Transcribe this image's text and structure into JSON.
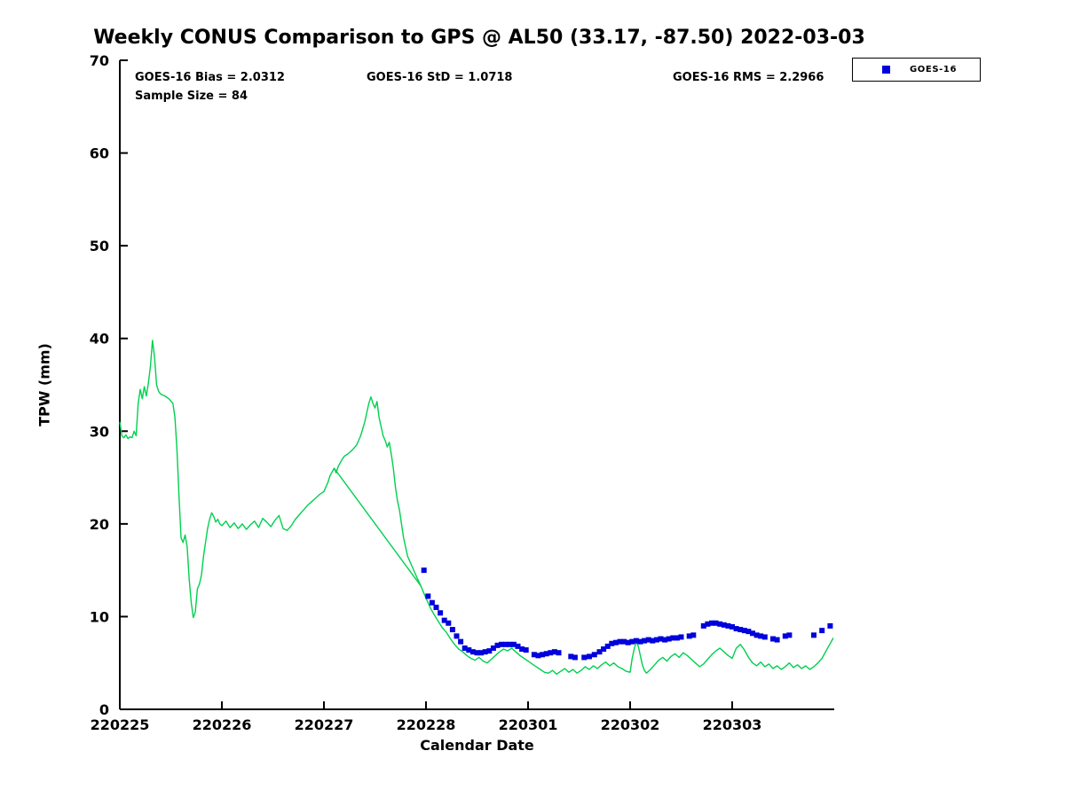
{
  "title": "Weekly CONUS Comparison to GPS @ AL50 (33.17, -87.50) 2022-03-03",
  "stats": {
    "bias": "GOES-16 Bias = 2.0312",
    "std": "GOES-16 StD = 1.0718",
    "rms": "GOES-16 RMS = 2.2966",
    "sample_size": "Sample Size = 84"
  },
  "legend": {
    "items": [
      {
        "label": "GOES-16",
        "marker_color": "#0000dd",
        "marker": "square"
      }
    ]
  },
  "chart_data": {
    "type": "line",
    "title": "Weekly CONUS Comparison to GPS @ AL50 (33.17, -87.50) 2022-03-03",
    "xlabel": "Calendar Date",
    "ylabel": "TPW (mm)",
    "xlim": [
      0,
      7
    ],
    "ylim": [
      0,
      70
    ],
    "grid": false,
    "legend_position": "top-right",
    "x_ticks": {
      "positions": [
        0,
        1,
        2,
        3,
        4,
        5,
        6
      ],
      "labels": [
        "220225",
        "220226",
        "220227",
        "220228",
        "220301",
        "220302",
        "220303"
      ]
    },
    "y_ticks": [
      0,
      10,
      20,
      30,
      40,
      50,
      60,
      70
    ],
    "x_unit_note": "x in days since 220225 (YYMMDD)",
    "series": [
      {
        "name": "GPS",
        "type": "line",
        "color": "#00d050",
        "points": [
          [
            0.0,
            31.0
          ],
          [
            0.02,
            29.5
          ],
          [
            0.04,
            29.3
          ],
          [
            0.06,
            29.6
          ],
          [
            0.08,
            29.2
          ],
          [
            0.1,
            29.4
          ],
          [
            0.12,
            29.3
          ],
          [
            0.14,
            30.0
          ],
          [
            0.16,
            29.5
          ],
          [
            0.18,
            33.0
          ],
          [
            0.2,
            34.5
          ],
          [
            0.22,
            33.5
          ],
          [
            0.24,
            34.8
          ],
          [
            0.26,
            33.8
          ],
          [
            0.28,
            35.2
          ],
          [
            0.3,
            37.0
          ],
          [
            0.32,
            39.8
          ],
          [
            0.34,
            38.0
          ],
          [
            0.35,
            36.5
          ],
          [
            0.36,
            35.0
          ],
          [
            0.38,
            34.3
          ],
          [
            0.4,
            34.0
          ],
          [
            0.44,
            33.8
          ],
          [
            0.48,
            33.5
          ],
          [
            0.52,
            33.0
          ],
          [
            0.54,
            31.5
          ],
          [
            0.56,
            28.0
          ],
          [
            0.58,
            23.0
          ],
          [
            0.6,
            18.5
          ],
          [
            0.62,
            18.0
          ],
          [
            0.64,
            18.8
          ],
          [
            0.66,
            17.5
          ],
          [
            0.68,
            14.0
          ],
          [
            0.7,
            11.5
          ],
          [
            0.72,
            9.9
          ],
          [
            0.74,
            10.5
          ],
          [
            0.76,
            13.0
          ],
          [
            0.78,
            13.5
          ],
          [
            0.8,
            14.5
          ],
          [
            0.82,
            16.5
          ],
          [
            0.84,
            18.0
          ],
          [
            0.86,
            19.5
          ],
          [
            0.88,
            20.5
          ],
          [
            0.9,
            21.2
          ],
          [
            0.92,
            20.8
          ],
          [
            0.94,
            20.2
          ],
          [
            0.96,
            20.5
          ],
          [
            0.98,
            20.0
          ],
          [
            1.0,
            19.8
          ],
          [
            1.04,
            20.3
          ],
          [
            1.08,
            19.6
          ],
          [
            1.12,
            20.1
          ],
          [
            1.16,
            19.5
          ],
          [
            1.2,
            20.0
          ],
          [
            1.24,
            19.4
          ],
          [
            1.28,
            19.9
          ],
          [
            1.32,
            20.3
          ],
          [
            1.36,
            19.6
          ],
          [
            1.4,
            20.6
          ],
          [
            1.44,
            20.2
          ],
          [
            1.48,
            19.7
          ],
          [
            1.52,
            20.4
          ],
          [
            1.56,
            20.9
          ],
          [
            1.6,
            19.5
          ],
          [
            1.64,
            19.3
          ],
          [
            1.68,
            19.8
          ],
          [
            1.72,
            20.5
          ],
          [
            1.76,
            21.0
          ],
          [
            1.8,
            21.5
          ],
          [
            1.84,
            22.0
          ],
          [
            1.88,
            22.4
          ],
          [
            1.92,
            22.8
          ],
          [
            1.96,
            23.2
          ],
          [
            2.0,
            23.5
          ],
          [
            2.02,
            24.0
          ],
          [
            2.04,
            24.5
          ],
          [
            2.06,
            25.2
          ],
          [
            2.08,
            25.6
          ],
          [
            2.1,
            26.0
          ],
          [
            2.12,
            25.5
          ],
          [
            2.14,
            26.2
          ],
          [
            2.16,
            26.6
          ],
          [
            2.18,
            27.0
          ],
          [
            2.2,
            27.3
          ],
          [
            2.24,
            27.6
          ],
          [
            2.28,
            28.0
          ],
          [
            2.32,
            28.5
          ],
          [
            2.36,
            29.5
          ],
          [
            2.4,
            31.0
          ],
          [
            2.42,
            32.0
          ],
          [
            2.44,
            33.0
          ],
          [
            2.46,
            33.7
          ],
          [
            2.48,
            33.0
          ],
          [
            2.5,
            32.5
          ],
          [
            2.52,
            33.2
          ],
          [
            2.54,
            31.5
          ],
          [
            2.56,
            30.5
          ],
          [
            2.58,
            29.5
          ],
          [
            2.6,
            29.0
          ],
          [
            2.62,
            28.3
          ],
          [
            2.64,
            28.8
          ],
          [
            2.66,
            27.5
          ],
          [
            2.68,
            26.0
          ],
          [
            2.7,
            24.0
          ],
          [
            2.72,
            22.5
          ],
          [
            2.74,
            21.5
          ],
          [
            2.76,
            20.0
          ],
          [
            2.78,
            18.5
          ],
          [
            2.8,
            17.5
          ],
          [
            2.82,
            16.5
          ],
          [
            2.84,
            16.0
          ],
          [
            2.86,
            15.5
          ],
          [
            2.88,
            15.0
          ],
          [
            2.9,
            14.5
          ],
          [
            2.92,
            14.0
          ],
          [
            2.95,
            13.3
          ],
          [
            2.98,
            12.5
          ],
          [
            3.0,
            12.0
          ],
          [
            3.04,
            11.0
          ],
          [
            3.08,
            10.2
          ],
          [
            3.12,
            9.5
          ],
          [
            3.16,
            8.8
          ],
          [
            3.2,
            8.3
          ],
          [
            3.24,
            7.6
          ],
          [
            3.28,
            7.0
          ],
          [
            3.32,
            6.5
          ],
          [
            3.36,
            6.2
          ],
          [
            3.4,
            5.8
          ],
          [
            3.44,
            5.5
          ],
          [
            3.48,
            5.3
          ],
          [
            3.52,
            5.6
          ],
          [
            3.56,
            5.2
          ],
          [
            3.6,
            5.0
          ],
          [
            3.64,
            5.4
          ],
          [
            3.68,
            5.8
          ],
          [
            3.72,
            6.2
          ],
          [
            3.76,
            6.5
          ],
          [
            3.8,
            6.3
          ],
          [
            3.84,
            6.6
          ],
          [
            3.88,
            6.2
          ],
          [
            3.92,
            5.8
          ],
          [
            3.96,
            5.5
          ],
          [
            4.0,
            5.2
          ],
          [
            4.04,
            4.9
          ],
          [
            4.08,
            4.6
          ],
          [
            4.12,
            4.3
          ],
          [
            4.16,
            4.0
          ],
          [
            4.2,
            3.9
          ],
          [
            4.24,
            4.2
          ],
          [
            4.28,
            3.8
          ],
          [
            4.32,
            4.1
          ],
          [
            4.36,
            4.4
          ],
          [
            4.4,
            4.0
          ],
          [
            4.44,
            4.3
          ],
          [
            4.48,
            3.9
          ],
          [
            4.52,
            4.2
          ],
          [
            4.56,
            4.6
          ],
          [
            4.6,
            4.3
          ],
          [
            4.64,
            4.7
          ],
          [
            4.68,
            4.4
          ],
          [
            4.72,
            4.8
          ],
          [
            4.76,
            5.1
          ],
          [
            4.8,
            4.7
          ],
          [
            4.84,
            5.0
          ],
          [
            4.88,
            4.6
          ],
          [
            4.92,
            4.4
          ],
          [
            4.96,
            4.1
          ],
          [
            5.0,
            4.0
          ],
          [
            5.02,
            5.5
          ],
          [
            5.04,
            6.5
          ],
          [
            5.06,
            7.3
          ],
          [
            5.08,
            6.8
          ],
          [
            5.1,
            5.8
          ],
          [
            5.12,
            4.8
          ],
          [
            5.14,
            4.2
          ],
          [
            5.16,
            3.9
          ],
          [
            5.2,
            4.3
          ],
          [
            5.24,
            4.8
          ],
          [
            5.28,
            5.3
          ],
          [
            5.32,
            5.6
          ],
          [
            5.36,
            5.2
          ],
          [
            5.4,
            5.7
          ],
          [
            5.44,
            6.0
          ],
          [
            5.48,
            5.6
          ],
          [
            5.52,
            6.1
          ],
          [
            5.56,
            5.8
          ],
          [
            5.6,
            5.4
          ],
          [
            5.64,
            5.0
          ],
          [
            5.68,
            4.6
          ],
          [
            5.72,
            4.9
          ],
          [
            5.76,
            5.4
          ],
          [
            5.8,
            5.9
          ],
          [
            5.84,
            6.3
          ],
          [
            5.88,
            6.6
          ],
          [
            5.92,
            6.2
          ],
          [
            5.96,
            5.8
          ],
          [
            6.0,
            5.5
          ],
          [
            6.04,
            6.6
          ],
          [
            6.08,
            7.0
          ],
          [
            6.12,
            6.4
          ],
          [
            6.16,
            5.6
          ],
          [
            6.2,
            5.0
          ],
          [
            6.24,
            4.7
          ],
          [
            6.28,
            5.1
          ],
          [
            6.32,
            4.6
          ],
          [
            6.36,
            4.9
          ],
          [
            6.4,
            4.4
          ],
          [
            6.44,
            4.7
          ],
          [
            6.48,
            4.3
          ],
          [
            6.52,
            4.6
          ],
          [
            6.56,
            5.0
          ],
          [
            6.6,
            4.5
          ],
          [
            6.64,
            4.8
          ],
          [
            6.68,
            4.4
          ],
          [
            6.72,
            4.7
          ],
          [
            6.76,
            4.3
          ],
          [
            6.8,
            4.6
          ],
          [
            6.84,
            5.0
          ],
          [
            6.88,
            5.5
          ],
          [
            6.92,
            6.3
          ],
          [
            6.96,
            7.1
          ],
          [
            6.99,
            7.7
          ]
        ]
      },
      {
        "name": "GPS-gap-segment",
        "type": "line",
        "color": "#00d050",
        "points": [
          [
            2.1,
            26.0
          ],
          [
            2.95,
            13.3
          ]
        ]
      },
      {
        "name": "GOES-16",
        "type": "scatter",
        "marker": "square",
        "color": "#0000dd",
        "points": [
          [
            2.98,
            15.0
          ],
          [
            3.02,
            12.2
          ],
          [
            3.06,
            11.5
          ],
          [
            3.1,
            11.0
          ],
          [
            3.14,
            10.4
          ],
          [
            3.18,
            9.6
          ],
          [
            3.22,
            9.3
          ],
          [
            3.26,
            8.6
          ],
          [
            3.3,
            7.9
          ],
          [
            3.34,
            7.3
          ],
          [
            3.38,
            6.6
          ],
          [
            3.42,
            6.4
          ],
          [
            3.46,
            6.2
          ],
          [
            3.5,
            6.1
          ],
          [
            3.54,
            6.1
          ],
          [
            3.58,
            6.2
          ],
          [
            3.62,
            6.3
          ],
          [
            3.66,
            6.6
          ],
          [
            3.7,
            6.9
          ],
          [
            3.74,
            7.0
          ],
          [
            3.78,
            7.0
          ],
          [
            3.82,
            7.0
          ],
          [
            3.86,
            7.0
          ],
          [
            3.9,
            6.8
          ],
          [
            3.94,
            6.5
          ],
          [
            3.98,
            6.4
          ],
          [
            4.06,
            5.9
          ],
          [
            4.1,
            5.8
          ],
          [
            4.14,
            5.9
          ],
          [
            4.18,
            6.0
          ],
          [
            4.22,
            6.1
          ],
          [
            4.26,
            6.2
          ],
          [
            4.3,
            6.1
          ],
          [
            4.42,
            5.7
          ],
          [
            4.46,
            5.6
          ],
          [
            4.55,
            5.6
          ],
          [
            4.6,
            5.7
          ],
          [
            4.65,
            5.9
          ],
          [
            4.7,
            6.2
          ],
          [
            4.74,
            6.5
          ],
          [
            4.78,
            6.8
          ],
          [
            4.82,
            7.1
          ],
          [
            4.86,
            7.2
          ],
          [
            4.9,
            7.3
          ],
          [
            4.94,
            7.3
          ],
          [
            4.98,
            7.2
          ],
          [
            5.02,
            7.3
          ],
          [
            5.06,
            7.4
          ],
          [
            5.1,
            7.3
          ],
          [
            5.14,
            7.4
          ],
          [
            5.18,
            7.5
          ],
          [
            5.22,
            7.4
          ],
          [
            5.26,
            7.5
          ],
          [
            5.3,
            7.6
          ],
          [
            5.34,
            7.5
          ],
          [
            5.38,
            7.6
          ],
          [
            5.42,
            7.7
          ],
          [
            5.46,
            7.7
          ],
          [
            5.5,
            7.8
          ],
          [
            5.58,
            7.9
          ],
          [
            5.62,
            8.0
          ],
          [
            5.72,
            9.0
          ],
          [
            5.76,
            9.2
          ],
          [
            5.8,
            9.3
          ],
          [
            5.84,
            9.3
          ],
          [
            5.88,
            9.2
          ],
          [
            5.92,
            9.1
          ],
          [
            5.96,
            9.0
          ],
          [
            6.0,
            8.9
          ],
          [
            6.04,
            8.7
          ],
          [
            6.08,
            8.6
          ],
          [
            6.12,
            8.5
          ],
          [
            6.16,
            8.4
          ],
          [
            6.2,
            8.2
          ],
          [
            6.24,
            8.0
          ],
          [
            6.28,
            7.9
          ],
          [
            6.32,
            7.8
          ],
          [
            6.4,
            7.6
          ],
          [
            6.44,
            7.5
          ],
          [
            6.52,
            7.9
          ],
          [
            6.56,
            8.0
          ],
          [
            6.8,
            8.0
          ],
          [
            6.88,
            8.5
          ],
          [
            6.96,
            9.0
          ]
        ]
      }
    ]
  }
}
